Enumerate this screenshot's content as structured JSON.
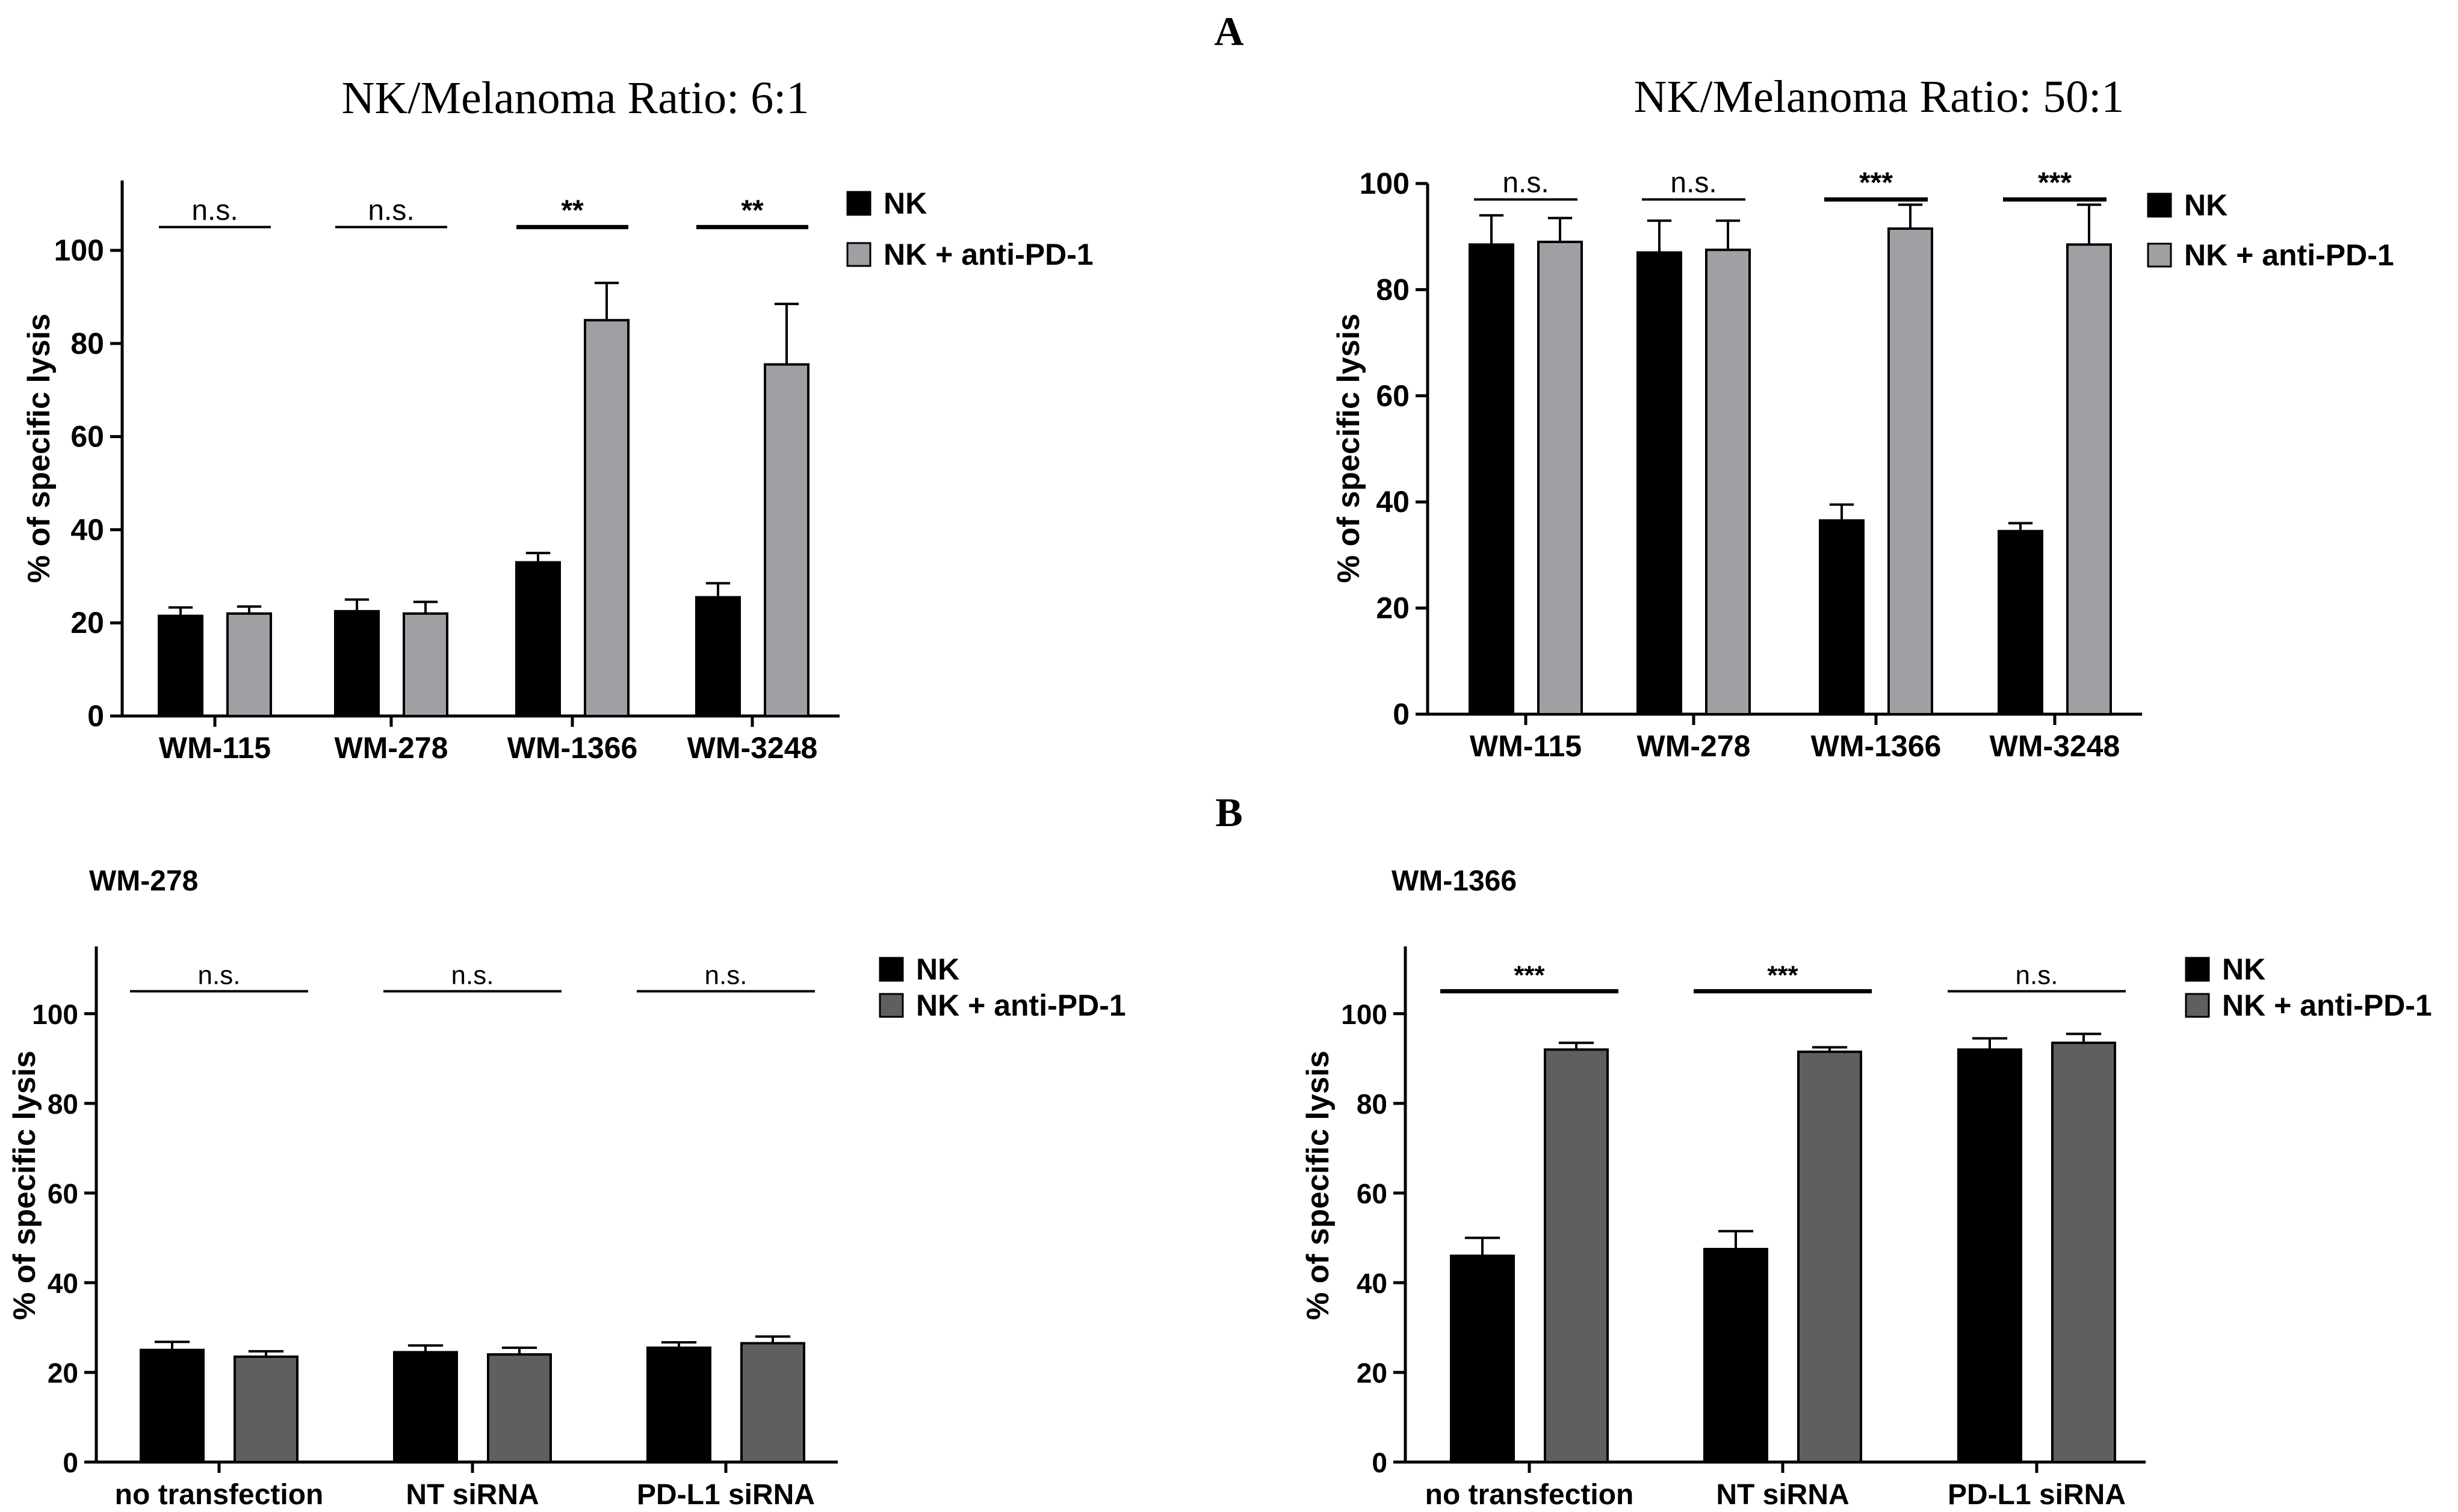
{
  "figure": {
    "panel_a_label": "A",
    "panel_b_label": "B"
  },
  "colors": {
    "nk": "#000000",
    "anti_light": "#a0a0a4",
    "anti_dark": "#5f5f5f",
    "axis": "#000000"
  },
  "chart_data": [
    {
      "id": "a1",
      "type": "bar",
      "title": "NK/Melanoma Ratio: 6:1",
      "xlabel": "",
      "ylabel": "% of specific lysis",
      "ylim": [
        0,
        115
      ],
      "yticks": [
        0,
        20,
        40,
        60,
        80,
        100
      ],
      "categories": [
        "WM-115",
        "WM-278",
        "WM-1366",
        "WM-3248"
      ],
      "series": [
        {
          "name": "NK",
          "color": "#000000",
          "values": [
            21.5,
            22.5,
            33,
            25.5
          ],
          "errors": [
            1.8,
            2.5,
            2,
            3
          ]
        },
        {
          "name": "NK + anti-PD-1",
          "color": "#a0a0a4",
          "values": [
            22,
            22,
            85,
            75.5
          ],
          "errors": [
            1.5,
            2.5,
            8,
            13
          ]
        }
      ],
      "significance": [
        {
          "label": "n.s.",
          "y": 105
        },
        {
          "label": "n.s.",
          "y": 105
        },
        {
          "label": "**",
          "y": 105
        },
        {
          "label": "**",
          "y": 105
        }
      ],
      "legend_position": "top-right"
    },
    {
      "id": "a2",
      "type": "bar",
      "title": "NK/Melanoma Ratio: 50:1",
      "xlabel": "",
      "ylabel": "% of specific lysis",
      "ylim": [
        0,
        100
      ],
      "yticks": [
        0,
        20,
        40,
        60,
        80,
        100
      ],
      "categories": [
        "WM-115",
        "WM-278",
        "WM-1366",
        "WM-3248"
      ],
      "series": [
        {
          "name": "NK",
          "color": "#000000",
          "values": [
            88.5,
            87,
            36.5,
            34.5
          ],
          "errors": [
            5.5,
            6,
            3,
            1.5
          ]
        },
        {
          "name": "NK + anti-PD-1",
          "color": "#a0a0a4",
          "values": [
            89,
            87.5,
            91.5,
            88.5
          ],
          "errors": [
            4.5,
            5.5,
            4.5,
            7.5
          ]
        }
      ],
      "significance": [
        {
          "label": "n.s.",
          "y": 97
        },
        {
          "label": "n.s.",
          "y": 97
        },
        {
          "label": "***",
          "y": 97
        },
        {
          "label": "***",
          "y": 97
        }
      ],
      "legend_position": "top-right"
    },
    {
      "id": "b1",
      "type": "bar",
      "title": "WM-278",
      "xlabel": "",
      "ylabel": "% of specific lysis",
      "ylim": [
        0,
        115
      ],
      "yticks": [
        0,
        20,
        40,
        60,
        80,
        100
      ],
      "categories": [
        "no transfection",
        "NT siRNA",
        "PD-L1 siRNA"
      ],
      "series": [
        {
          "name": "NK",
          "color": "#000000",
          "values": [
            25,
            24.5,
            25.5
          ],
          "errors": [
            1.8,
            1.5,
            1.2
          ]
        },
        {
          "name": "NK + anti-PD-1",
          "color": "#5f5f5f",
          "values": [
            23.5,
            24,
            26.5
          ],
          "errors": [
            1.2,
            1.5,
            1.5
          ]
        }
      ],
      "significance": [
        {
          "label": "n.s.",
          "y": 105
        },
        {
          "label": "n.s.",
          "y": 105
        },
        {
          "label": "n.s.",
          "y": 105
        }
      ],
      "legend_position": "top-right"
    },
    {
      "id": "b2",
      "type": "bar",
      "title": "WM-1366",
      "xlabel": "",
      "ylabel": "% of specific lysis",
      "ylim": [
        0,
        115
      ],
      "yticks": [
        0,
        20,
        40,
        60,
        80,
        100
      ],
      "categories": [
        "no transfection",
        "NT siRNA",
        "PD-L1 siRNA"
      ],
      "series": [
        {
          "name": "NK",
          "color": "#000000",
          "values": [
            46,
            47.5,
            92
          ],
          "errors": [
            4,
            4,
            2.5
          ]
        },
        {
          "name": "NK + anti-PD-1",
          "color": "#5f5f5f",
          "values": [
            92,
            91.5,
            93.5
          ],
          "errors": [
            1.5,
            1,
            2
          ]
        }
      ],
      "significance": [
        {
          "label": "***",
          "y": 105
        },
        {
          "label": "***",
          "y": 105
        },
        {
          "label": "n.s.",
          "y": 105
        }
      ],
      "legend_position": "top-right"
    }
  ]
}
